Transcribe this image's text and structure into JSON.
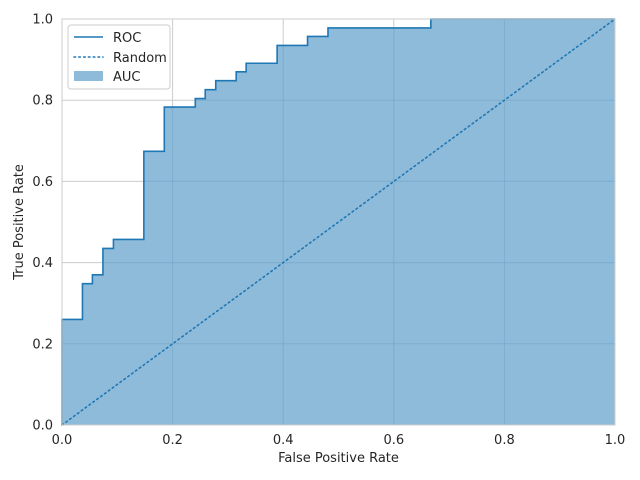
{
  "chart_data": {
    "type": "line",
    "title": "",
    "xlabel": "False Positive Rate",
    "ylabel": "True Positive Rate",
    "xlim": [
      0,
      1
    ],
    "ylim": [
      0,
      1
    ],
    "xticks": [
      "0.0",
      "0.2",
      "0.4",
      "0.6",
      "0.8",
      "1.0"
    ],
    "yticks": [
      "0.0",
      "0.2",
      "0.4",
      "0.6",
      "0.8",
      "1.0"
    ],
    "grid": true,
    "legend_position": "top-left",
    "colors": {
      "roc": "#1f77b4",
      "random": "#1f77b4",
      "auc_fill": "#8fbbda",
      "grid": "#cccccc",
      "axes_edge": "#cccccc"
    },
    "series": [
      {
        "name": "ROC",
        "style": "solid-step",
        "points": [
          [
            0.0,
            0.0
          ],
          [
            0.0,
            0.26
          ],
          [
            0.037,
            0.26
          ],
          [
            0.037,
            0.348
          ],
          [
            0.055,
            0.348
          ],
          [
            0.055,
            0.37
          ],
          [
            0.074,
            0.37
          ],
          [
            0.074,
            0.435
          ],
          [
            0.093,
            0.435
          ],
          [
            0.093,
            0.457
          ],
          [
            0.148,
            0.457
          ],
          [
            0.148,
            0.674
          ],
          [
            0.185,
            0.674
          ],
          [
            0.185,
            0.783
          ],
          [
            0.241,
            0.783
          ],
          [
            0.241,
            0.804
          ],
          [
            0.259,
            0.804
          ],
          [
            0.259,
            0.826
          ],
          [
            0.278,
            0.826
          ],
          [
            0.278,
            0.848
          ],
          [
            0.315,
            0.848
          ],
          [
            0.315,
            0.87
          ],
          [
            0.333,
            0.87
          ],
          [
            0.333,
            0.891
          ],
          [
            0.389,
            0.891
          ],
          [
            0.389,
            0.935
          ],
          [
            0.444,
            0.935
          ],
          [
            0.444,
            0.957
          ],
          [
            0.481,
            0.957
          ],
          [
            0.481,
            0.978
          ],
          [
            0.667,
            0.978
          ],
          [
            0.667,
            1.0
          ],
          [
            1.0,
            1.0
          ]
        ]
      },
      {
        "name": "Random",
        "style": "dotted",
        "points": [
          [
            0.0,
            0.0
          ],
          [
            1.0,
            1.0
          ]
        ]
      },
      {
        "name": "AUC",
        "style": "filled-area",
        "fill_under": "ROC"
      }
    ],
    "legend": [
      "ROC",
      "Random",
      "AUC"
    ]
  }
}
